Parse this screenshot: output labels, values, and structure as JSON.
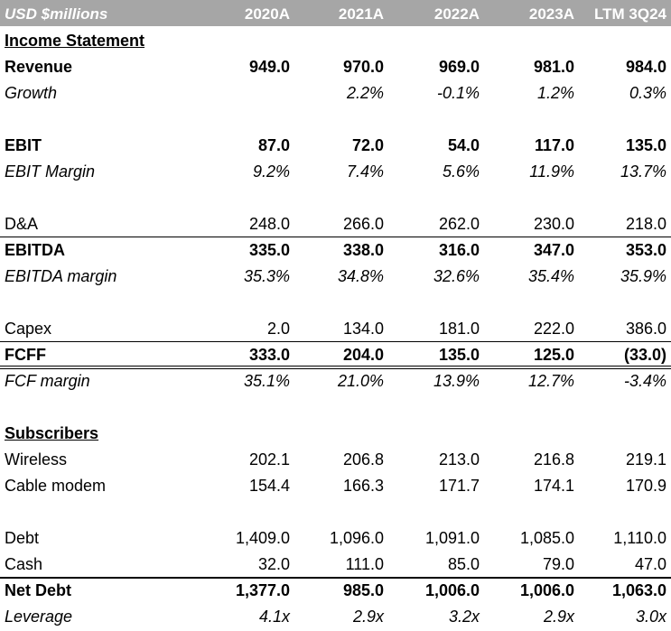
{
  "header": {
    "title": "USD $millions",
    "columns": [
      "2020A",
      "2021A",
      "2022A",
      "2023A",
      "LTM 3Q24"
    ]
  },
  "rows": [
    {
      "label": "Income Statement",
      "style": "section",
      "values": []
    },
    {
      "label": "Revenue",
      "style": "bold",
      "values": [
        "949.0",
        "970.0",
        "969.0",
        "981.0",
        "984.0"
      ]
    },
    {
      "label": "Growth",
      "style": "italic",
      "values": [
        "",
        "2.2%",
        "-0.1%",
        "1.2%",
        "0.3%"
      ]
    },
    {
      "label": "",
      "style": "blank",
      "values": []
    },
    {
      "label": "EBIT",
      "style": "bold",
      "values": [
        "87.0",
        "72.0",
        "54.0",
        "117.0",
        "135.0"
      ]
    },
    {
      "label": "EBIT Margin",
      "style": "italic",
      "values": [
        "9.2%",
        "7.4%",
        "5.6%",
        "11.9%",
        "13.7%"
      ]
    },
    {
      "label": "",
      "style": "blank",
      "values": []
    },
    {
      "label": "D&A",
      "style": "normal",
      "values": [
        "248.0",
        "266.0",
        "262.0",
        "230.0",
        "218.0"
      ]
    },
    {
      "label": "EBITDA",
      "style": "bold",
      "values": [
        "335.0",
        "338.0",
        "316.0",
        "347.0",
        "353.0"
      ]
    },
    {
      "label": "EBITDA margin",
      "style": "italic",
      "values": [
        "35.3%",
        "34.8%",
        "32.6%",
        "35.4%",
        "35.9%"
      ]
    },
    {
      "label": "",
      "style": "blank",
      "values": []
    },
    {
      "label": "Capex",
      "style": "normal",
      "values": [
        "2.0",
        "134.0",
        "181.0",
        "222.0",
        "386.0"
      ]
    },
    {
      "label": "FCFF",
      "style": "bold",
      "values": [
        "333.0",
        "204.0",
        "135.0",
        "125.0",
        "(33.0)"
      ]
    },
    {
      "label": "FCF margin",
      "style": "italic",
      "values": [
        "35.1%",
        "21.0%",
        "13.9%",
        "12.7%",
        "-3.4%"
      ]
    },
    {
      "label": "",
      "style": "blank",
      "values": []
    },
    {
      "label": "Subscribers",
      "style": "section",
      "values": []
    },
    {
      "label": "Wireless",
      "style": "normal",
      "values": [
        "202.1",
        "206.8",
        "213.0",
        "216.8",
        "219.1"
      ]
    },
    {
      "label": "Cable modem",
      "style": "normal",
      "values": [
        "154.4",
        "166.3",
        "171.7",
        "174.1",
        "170.9"
      ]
    },
    {
      "label": "",
      "style": "blank",
      "values": []
    },
    {
      "label": "Debt",
      "style": "normal",
      "values": [
        "1,409.0",
        "1,096.0",
        "1,091.0",
        "1,085.0",
        "1,110.0"
      ]
    },
    {
      "label": "Cash",
      "style": "normal",
      "values": [
        "32.0",
        "111.0",
        "85.0",
        "79.0",
        "47.0"
      ]
    },
    {
      "label": "Net Debt",
      "style": "bold",
      "values": [
        "1,377.0",
        "985.0",
        "1,006.0",
        "1,006.0",
        "1,063.0"
      ]
    },
    {
      "label": "Leverage",
      "style": "italic",
      "values": [
        "4.1x",
        "2.9x",
        "3.2x",
        "2.9x",
        "3.0x"
      ]
    }
  ]
}
